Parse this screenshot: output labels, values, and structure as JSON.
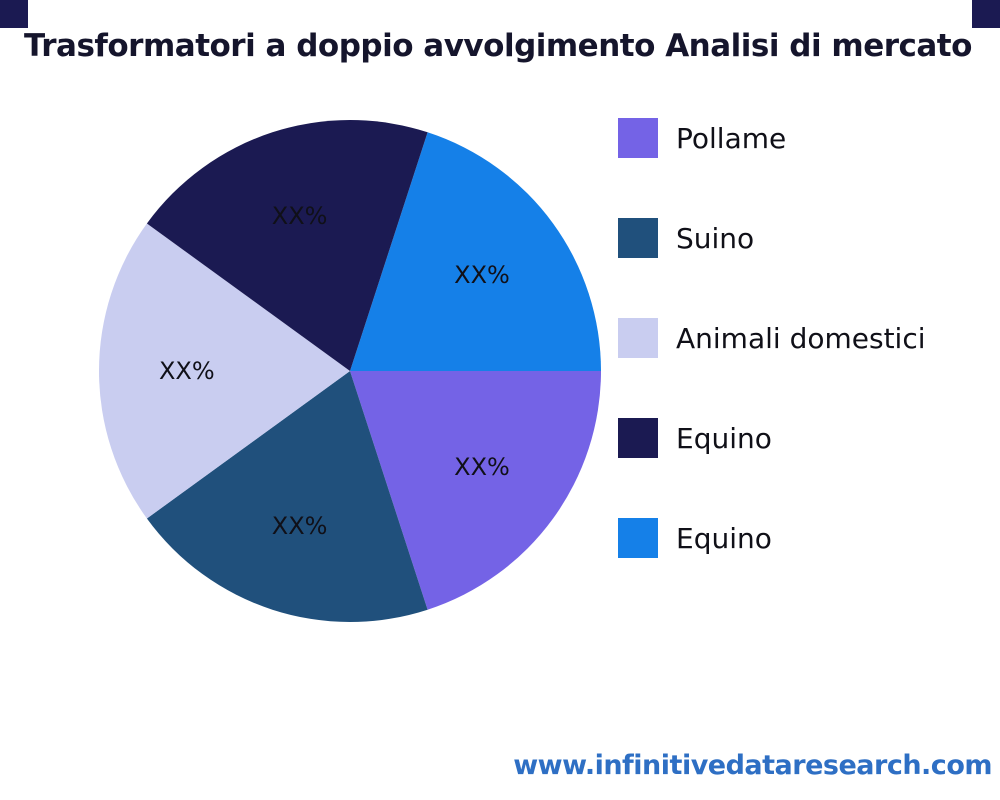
{
  "title": "Trasformatori a doppio avvolgimento Analisi di mercato",
  "watermark": "www.infinitivedataresearch.com",
  "legend": {
    "position": "right",
    "items": [
      {
        "label": "Pollame",
        "color": "#7463e6"
      },
      {
        "label": "Suino",
        "color": "#20507c"
      },
      {
        "label": "Animali domestici",
        "color": "#c9cdf0"
      },
      {
        "label": "Equino",
        "color": "#1b1a52"
      },
      {
        "label": "Equino",
        "color": "#1580e8"
      }
    ]
  },
  "chart_data": {
    "type": "pie",
    "title": "Trasformatori a doppio avvolgimento Analisi di mercato",
    "direction": "clockwise",
    "start_angle_deg": 18,
    "label_radius_frac": 0.65,
    "slices": [
      {
        "label": "Equino",
        "value": 20,
        "display": "XX%",
        "color": "#1580e8"
      },
      {
        "label": "Pollame",
        "value": 20,
        "display": "XX%",
        "color": "#7463e6"
      },
      {
        "label": "Suino",
        "value": 20,
        "display": "XX%",
        "color": "#20507c"
      },
      {
        "label": "Animali domestici",
        "value": 20,
        "display": "XX%",
        "color": "#c9cdf0"
      },
      {
        "label": "Equino",
        "value": 20,
        "display": "XX%",
        "color": "#1b1a52"
      }
    ]
  }
}
